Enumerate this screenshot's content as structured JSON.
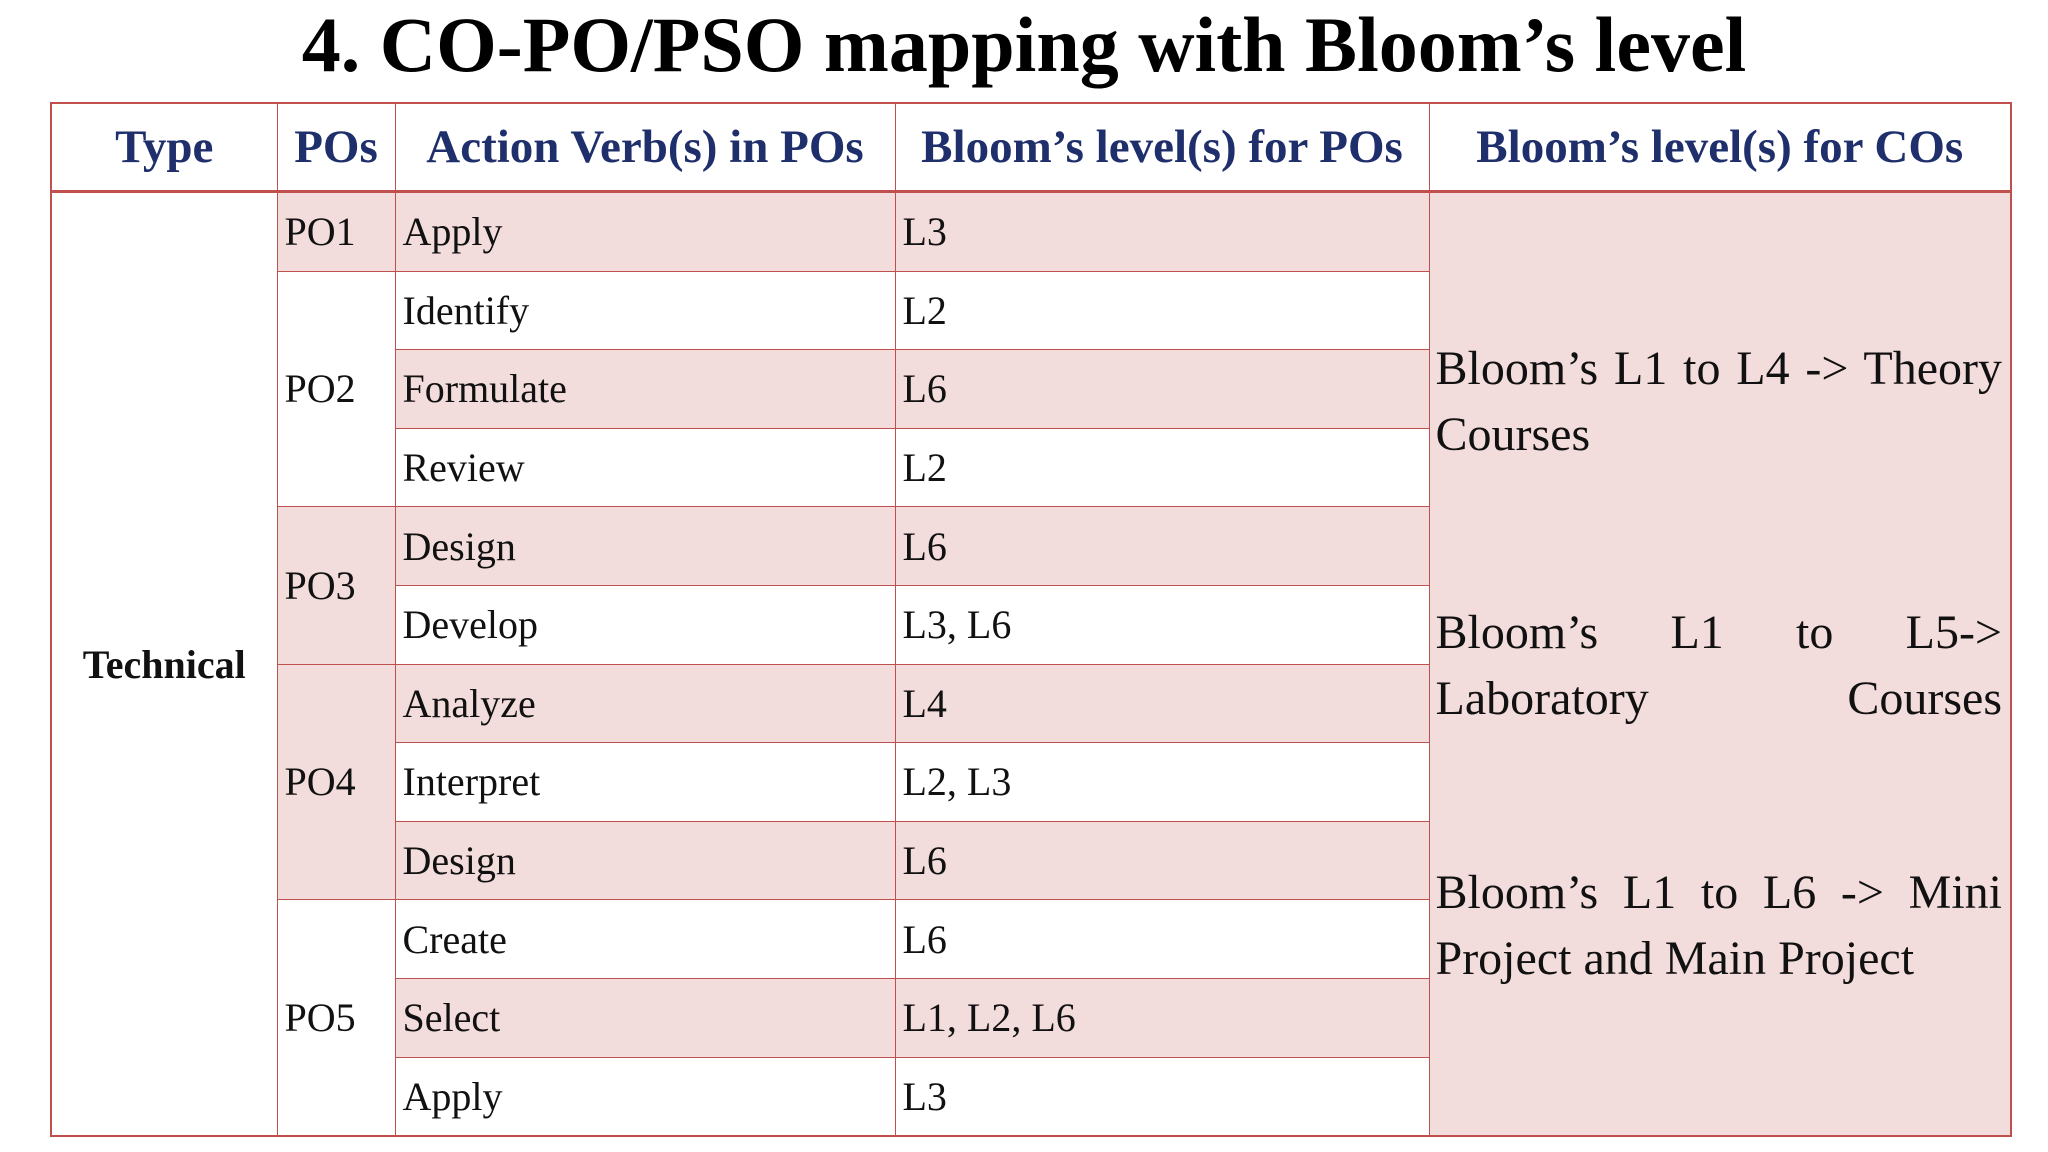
{
  "title": "4. CO-PO/PSO mapping with Bloom’s level",
  "headers": {
    "type": "Type",
    "pos": "POs",
    "verbs": "Action Verb(s) in POs",
    "po_levels": "Bloom’s level(s) for POs",
    "co_levels": "Bloom’s level(s) for COs"
  },
  "type_label": "Technical",
  "po_groups": [
    {
      "po": "PO1",
      "rows": [
        {
          "verb": "Apply",
          "level": "L3"
        }
      ]
    },
    {
      "po": "PO2",
      "rows": [
        {
          "verb": "Identify",
          "level": "L2"
        },
        {
          "verb": "Formulate",
          "level": "L6"
        },
        {
          "verb": "Review",
          "level": "L2"
        }
      ]
    },
    {
      "po": "PO3",
      "rows": [
        {
          "verb": "Design",
          "level": "L6"
        },
        {
          "verb": "Develop",
          "level": "L3, L6"
        }
      ]
    },
    {
      "po": "PO4",
      "rows": [
        {
          "verb": "Analyze",
          "level": "L4"
        },
        {
          "verb": "Interpret",
          "level": "L2, L3"
        },
        {
          "verb": "Design",
          "level": "L6"
        }
      ]
    },
    {
      "po": "PO5",
      "rows": [
        {
          "verb": "Create",
          "level": "L6"
        },
        {
          "verb": "Select",
          "level": "L1, L2, L6"
        },
        {
          "verb": "Apply",
          "level": "L3"
        }
      ]
    }
  ],
  "co_levels_text": [
    "Bloom’s L1 to L4 -> Theory Courses",
    "Bloom’s L1 to L5-> Laboratory Courses",
    "Bloom’s L1 to L6 -> Mini Project and Main Project"
  ],
  "colors": {
    "border": "#C0504D",
    "header_text": "#1F2F6B",
    "row_shade": "#F3DCDC"
  }
}
